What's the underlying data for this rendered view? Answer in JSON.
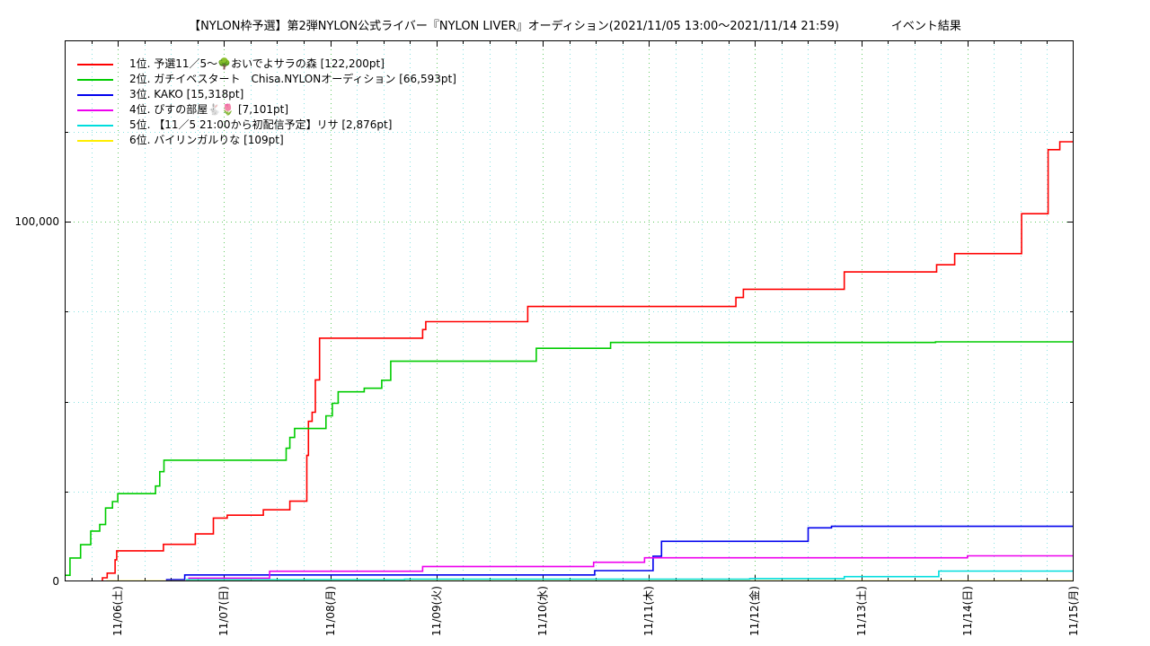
{
  "title": {
    "main": "【NYLON枠予選】第2弾NYLON公式ライバー『NYLON LIVER』オーディション(2021/11/05 13:00～2021/11/14 21:59)",
    "right": "イベント結果"
  },
  "chart_data": {
    "type": "line",
    "subtype": "step-after cumulative points race",
    "title": "【NYLON枠予選】第2弾NYLON公式ライバー『NYLON LIVER』オーディション(2021/11/05 13:00～2021/11/14 21:59) イベント結果",
    "xlabel": "",
    "ylabel": "",
    "legend_position": "top-left-inside",
    "grid": {
      "major_color": "#2db82d",
      "minor_color": "#5fd9d9",
      "style": "dotted"
    },
    "x_axis": {
      "domain_days": [
        0,
        9.5
      ],
      "start": "2021/11/05 12:00",
      "end": "2021/11/15 00:00",
      "minor_step_days": 0.25,
      "ticks": [
        {
          "t": 0.5,
          "label": "11/06(土)"
        },
        {
          "t": 1.5,
          "label": "11/07(日)"
        },
        {
          "t": 2.5,
          "label": "11/08(月)"
        },
        {
          "t": 3.5,
          "label": "11/09(火)"
        },
        {
          "t": 4.5,
          "label": "11/10(水)"
        },
        {
          "t": 5.5,
          "label": "11/11(木)"
        },
        {
          "t": 6.5,
          "label": "11/12(金)"
        },
        {
          "t": 7.5,
          "label": "11/13(土)"
        },
        {
          "t": 8.5,
          "label": "11/14(日)"
        },
        {
          "t": 9.5,
          "label": "11/15(月)"
        }
      ]
    },
    "y_axis": {
      "ylim": [
        0,
        150000
      ],
      "minor_step": 25000,
      "major_step": 100000,
      "ticks": [
        {
          "v": 0,
          "label": "0"
        },
        {
          "v": 100000,
          "label": "100,000"
        }
      ]
    },
    "series": [
      {
        "name": "1位. 予選11／5～🌳おいでよサラの森 [122,200pt]",
        "rank": 1,
        "final_pt": 122200,
        "color": "#ff0000",
        "points": [
          [
            0,
            0
          ],
          [
            0.355,
            1000
          ],
          [
            0.4,
            2300
          ],
          [
            0.475,
            6000
          ],
          [
            0.49,
            8500
          ],
          [
            0.93,
            10300
          ],
          [
            1.23,
            13200
          ],
          [
            1.4,
            17600
          ],
          [
            1.53,
            18400
          ],
          [
            1.87,
            19900
          ],
          [
            2.12,
            22300
          ],
          [
            2.28,
            35000
          ],
          [
            2.295,
            44500
          ],
          [
            2.33,
            47000
          ],
          [
            2.36,
            56000
          ],
          [
            2.4,
            67600
          ],
          [
            3.37,
            70000
          ],
          [
            3.4,
            72200
          ],
          [
            4.36,
            76400
          ],
          [
            6.32,
            78900
          ],
          [
            6.39,
            81200
          ],
          [
            7.34,
            86000
          ],
          [
            8.21,
            88000
          ],
          [
            8.38,
            91100
          ],
          [
            9.01,
            102200
          ],
          [
            9.26,
            120000
          ],
          [
            9.37,
            122200
          ]
        ]
      },
      {
        "name": "2位. ガチイベスタート　Chisa.NYLONオーディション [66,593pt]",
        "rank": 2,
        "final_pt": 66593,
        "color": "#00cc00",
        "points": [
          [
            0,
            1700
          ],
          [
            0.05,
            6500
          ],
          [
            0.15,
            10200
          ],
          [
            0.245,
            14000
          ],
          [
            0.33,
            15800
          ],
          [
            0.385,
            20400
          ],
          [
            0.45,
            22200
          ],
          [
            0.5,
            24400
          ],
          [
            0.855,
            26500
          ],
          [
            0.895,
            30500
          ],
          [
            0.935,
            33700
          ],
          [
            2.085,
            37000
          ],
          [
            2.12,
            40000
          ],
          [
            2.165,
            42500
          ],
          [
            2.46,
            46000
          ],
          [
            2.52,
            49500
          ],
          [
            2.575,
            52700
          ],
          [
            2.82,
            53700
          ],
          [
            2.985,
            55900
          ],
          [
            3.07,
            61200
          ],
          [
            4.44,
            64800
          ],
          [
            5.14,
            66400
          ],
          [
            8.2,
            66593
          ]
        ]
      },
      {
        "name": "3位. KAKO [15,318pt]",
        "rank": 3,
        "final_pt": 15318,
        "color": "#0000ee",
        "points": [
          [
            0,
            0
          ],
          [
            0.96,
            500
          ],
          [
            1.13,
            1800
          ],
          [
            4.99,
            3000
          ],
          [
            5.54,
            7000
          ],
          [
            5.62,
            11150
          ],
          [
            7.0,
            14890
          ],
          [
            7.22,
            15318
          ]
        ]
      },
      {
        "name": "4位. ぴすの部屋🐇🌷 [7,101pt]",
        "rank": 4,
        "final_pt": 7101,
        "color": "#ee00ee",
        "points": [
          [
            0,
            0
          ],
          [
            1.17,
            900
          ],
          [
            1.93,
            2820
          ],
          [
            3.37,
            4150
          ],
          [
            4.98,
            5310
          ],
          [
            5.46,
            6560
          ],
          [
            8.5,
            7101
          ]
        ]
      },
      {
        "name": "5位. 【11／5 21:00から初配信予定】リサ [2,876pt]",
        "rank": 5,
        "final_pt": 2876,
        "color": "#00dddd",
        "points": [
          [
            0,
            0
          ],
          [
            1.15,
            500
          ],
          [
            3.2,
            620
          ],
          [
            6.45,
            780
          ],
          [
            7.34,
            1320
          ],
          [
            8.23,
            2876
          ]
        ]
      },
      {
        "name": "6位. バイリンガルりな [109pt]",
        "rank": 6,
        "final_pt": 109,
        "color": "#ffee00",
        "points": [
          [
            0,
            0
          ],
          [
            0.4,
            109
          ]
        ]
      }
    ]
  }
}
